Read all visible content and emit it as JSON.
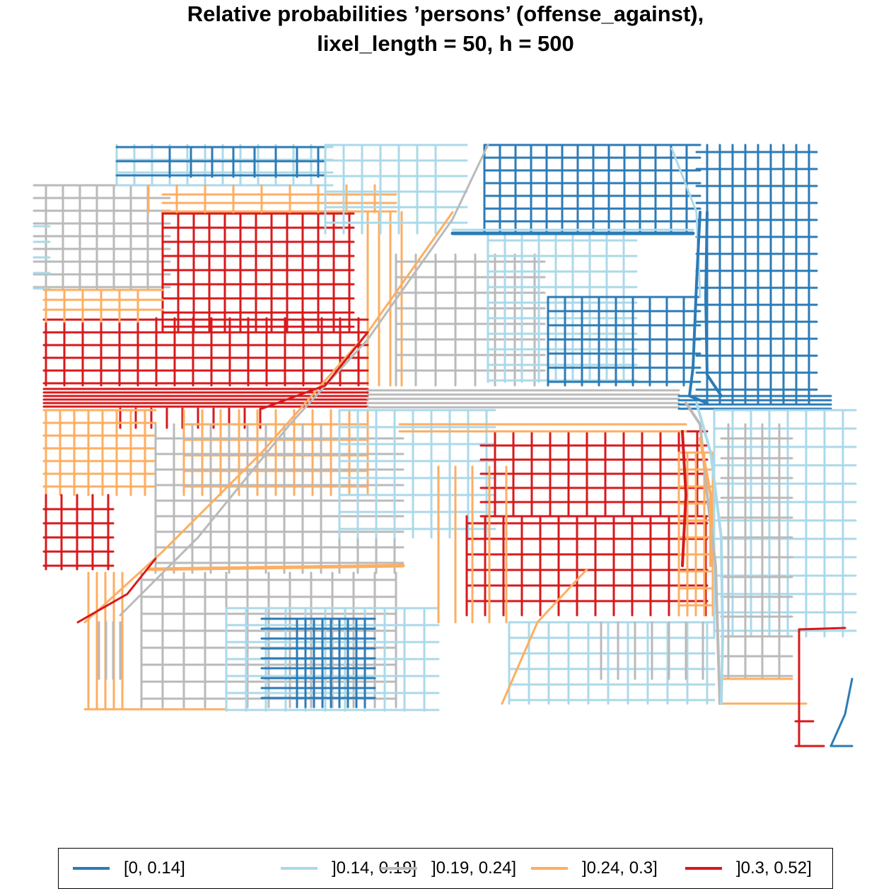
{
  "title": {
    "line1": "Relative probabilities ’persons’ (offense_against),",
    "line2": "lixel_length = 50, h = 500"
  },
  "legend": {
    "items": [
      {
        "label": "[0, 0.14]",
        "color": "#2c7bb6"
      },
      {
        "label": "]0.14, 0.19]",
        "color": "#abd9e9"
      },
      {
        "label": "]0.19, 0.24]",
        "color": "#bababa"
      },
      {
        "label": "]0.24, 0.3]",
        "color": "#fdae61"
      },
      {
        "label": "]0.3, 0.52]",
        "color": "#d7191c"
      }
    ]
  },
  "map": {
    "classes": {
      "c0": "#2c7bb6",
      "c1": "#abd9e9",
      "c2": "#bababa",
      "c3": "#fdae61",
      "c4": "#d7191c"
    }
  }
}
